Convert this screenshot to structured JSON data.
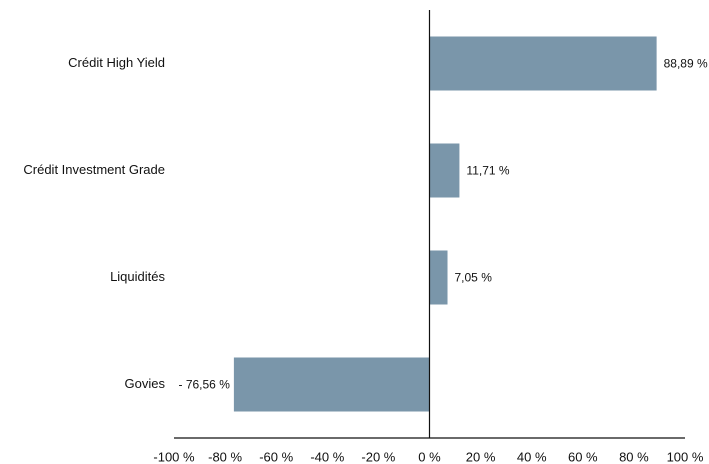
{
  "chart_data": {
    "type": "hbar",
    "categories": [
      "Crédit High Yield",
      "Crédit Investment Grade",
      "Liquidités",
      "Govies"
    ],
    "values": [
      88.89,
      11.71,
      7.05,
      -76.56
    ],
    "value_labels": [
      "88,89 %",
      "11,71 %",
      "7,05 %",
      "- 76,56 %"
    ],
    "color": "#7a96aa",
    "xlim": [
      -100,
      100
    ],
    "xticks": [
      {
        "value": -100,
        "label": "-100 %"
      },
      {
        "value": -80,
        "label": "-80 %"
      },
      {
        "value": -60,
        "label": "-60 %"
      },
      {
        "value": -40,
        "label": "-40 %"
      },
      {
        "value": -20,
        "label": "-20 %"
      },
      {
        "value": 0,
        "label": "0 %"
      },
      {
        "value": 20,
        "label": "20 %"
      },
      {
        "value": 40,
        "label": "40 %"
      },
      {
        "value": 60,
        "label": "60 %"
      },
      {
        "value": 80,
        "label": "80 %"
      },
      {
        "value": 100,
        "label": "100 %"
      }
    ]
  }
}
